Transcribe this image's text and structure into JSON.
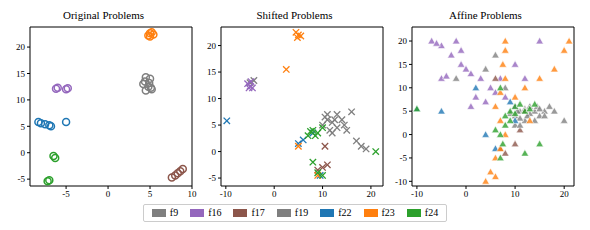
{
  "chart_data": [
    {
      "type": "scatter",
      "title": "Original Problems",
      "legend": "bottom",
      "xlim": [
        -9.3,
        10
      ],
      "xticks": [
        -5,
        0,
        5,
        10
      ],
      "ylim": [
        -6.3,
        23.8
      ],
      "yticks": [
        -5,
        0,
        5,
        10,
        15,
        20
      ],
      "series": [
        {
          "name": "f9",
          "color": "#7f7f7f",
          "marker": "circle",
          "x": [
            4.2,
            4.5,
            5.0,
            4.8,
            4.5,
            5.2
          ],
          "y": [
            13.0,
            14.3,
            14.0,
            12.5,
            11.8,
            12.0
          ]
        },
        {
          "name": "f16",
          "color": "#9467bd",
          "marker": "circle",
          "x": [
            -6.2,
            -6.0,
            -4.8,
            -5.0
          ],
          "y": [
            12.1,
            12.3,
            12.2,
            12.0
          ]
        },
        {
          "name": "f17",
          "color": "#8c564b",
          "marker": "circle",
          "x": [
            7.6,
            8.0,
            8.3,
            8.6,
            8.9
          ],
          "y": [
            -4.7,
            -4.3,
            -3.9,
            -3.5,
            -3.1
          ]
        },
        {
          "name": "f19",
          "color": "#7f7f7f",
          "marker": "circle",
          "x": [
            4.4,
            4.9,
            5.1
          ],
          "y": [
            13.5,
            13.2,
            12.3
          ]
        },
        {
          "name": "f22",
          "color": "#1f77b4",
          "marker": "circle",
          "x": [
            -8.3,
            -8.0,
            -7.5,
            -7.0,
            -6.8,
            -5.0
          ],
          "y": [
            5.8,
            5.6,
            5.4,
            5.2,
            5.0,
            5.8
          ]
        },
        {
          "name": "f23",
          "color": "#ff7f0e",
          "marker": "circle",
          "x": [
            4.8,
            5.0,
            5.2,
            5.4,
            5.0
          ],
          "y": [
            22.2,
            22.6,
            22.8,
            22.4,
            22.0
          ]
        },
        {
          "name": "f24",
          "color": "#2ca02c",
          "marker": "circle",
          "x": [
            -6.5,
            -6.3,
            -7.2,
            -7.0
          ],
          "y": [
            -0.6,
            -1.0,
            -5.4,
            -5.2
          ]
        }
      ]
    },
    {
      "type": "scatter",
      "title": "Shifted Problems",
      "xlim": [
        -11,
        22.5
      ],
      "xticks": [
        -10,
        0,
        10,
        20
      ],
      "ylim": [
        -6.5,
        23.5
      ],
      "yticks": [
        -5,
        0,
        5,
        10,
        15,
        20
      ],
      "series": [
        {
          "name": "f9",
          "color": "#7f7f7f",
          "marker": "x",
          "x": [
            10,
            11,
            12,
            13,
            14,
            15,
            16,
            12,
            18,
            19,
            11,
            13,
            -5,
            -4.2
          ],
          "y": [
            5,
            6,
            5.5,
            7,
            6,
            4,
            7.5,
            3.5,
            1,
            0.5,
            7,
            4.5,
            13,
            13.4
          ]
        },
        {
          "name": "f16",
          "color": "#9467bd",
          "marker": "x",
          "x": [
            -5.5,
            -5,
            -4.5,
            -4.8,
            -5.2
          ],
          "y": [
            12.8,
            12.3,
            12,
            13.2,
            12
          ]
        },
        {
          "name": "f17",
          "color": "#8c564b",
          "marker": "x",
          "x": [
            10.5,
            10,
            11,
            9
          ],
          "y": [
            1,
            -3,
            -2.5,
            -3.5
          ]
        },
        {
          "name": "f19",
          "color": "#7f7f7f",
          "marker": "x",
          "x": [
            10.5,
            12.5,
            14.5,
            11.5,
            17
          ],
          "y": [
            6.5,
            6,
            5,
            4,
            2
          ]
        },
        {
          "name": "f22",
          "color": "#1f77b4",
          "marker": "x",
          "x": [
            -9.8,
            5,
            6,
            9.5,
            8
          ],
          "y": [
            5.8,
            1.5,
            2.2,
            -4.5,
            3.5
          ]
        },
        {
          "name": "f23",
          "color": "#ff7f0e",
          "marker": "x",
          "x": [
            4.5,
            5,
            5.5,
            4.8,
            2.5,
            9,
            5
          ],
          "y": [
            22.5,
            22,
            21.8,
            21.5,
            15.5,
            -4.5,
            1
          ]
        },
        {
          "name": "f24",
          "color": "#2ca02c",
          "marker": "x",
          "x": [
            7,
            8,
            9,
            10,
            7.5,
            8.5,
            10,
            21,
            9,
            8
          ],
          "y": [
            3,
            4,
            3.5,
            4.5,
            3.8,
            3,
            -4.5,
            0,
            -4,
            -2
          ]
        }
      ]
    },
    {
      "type": "scatter",
      "title": "Affine Problems",
      "xlim": [
        -11,
        22
      ],
      "xticks": [
        -10,
        0,
        10,
        20
      ],
      "ylim": [
        -11,
        23
      ],
      "yticks": [
        -10,
        -5,
        0,
        5,
        10,
        15,
        20
      ],
      "series": [
        {
          "name": "f9",
          "color": "#7f7f7f",
          "marker": "triangle",
          "x": [
            10,
            11,
            12,
            13,
            14,
            15,
            12,
            10,
            11,
            13,
            16,
            17,
            14,
            9,
            18,
            6,
            4,
            -2,
            20,
            8
          ],
          "y": [
            4,
            5,
            5.5,
            6,
            5,
            4,
            3,
            2,
            3.5,
            4.5,
            5,
            6,
            3,
            4.5,
            5,
            17,
            14,
            12,
            3,
            10
          ]
        },
        {
          "name": "f16",
          "color": "#9467bd",
          "marker": "triangle",
          "x": [
            -7,
            -5,
            -3,
            -1,
            0,
            1,
            3,
            5,
            6,
            8,
            10,
            -5,
            -4,
            -6,
            -2,
            -1,
            2,
            4,
            10,
            12,
            15,
            1,
            7
          ],
          "y": [
            20,
            19,
            17,
            15,
            14,
            13,
            12,
            10,
            9,
            8,
            6,
            12,
            12.5,
            19.5,
            20,
            18,
            8,
            7,
            15,
            12,
            20,
            6,
            12
          ]
        },
        {
          "name": "f17",
          "color": "#8c564b",
          "marker": "triangle",
          "x": [
            7,
            8,
            11,
            10,
            12,
            6
          ],
          "y": [
            -3,
            -4,
            1,
            -2,
            5,
            12
          ]
        },
        {
          "name": "f19",
          "color": "#7f7f7f",
          "marker": "triangle",
          "x": [
            10.5,
            12.5,
            14.5,
            11,
            15,
            16
          ],
          "y": [
            5,
            4,
            6,
            2,
            5.5,
            4
          ]
        },
        {
          "name": "f22",
          "color": "#1f77b4",
          "marker": "triangle",
          "x": [
            -10,
            -5,
            4,
            6,
            10,
            9,
            2
          ],
          "y": [
            5.5,
            5,
            0,
            -3,
            3,
            7,
            10
          ]
        },
        {
          "name": "f23",
          "color": "#ff7f0e",
          "marker": "triangle",
          "x": [
            8,
            8,
            7.5,
            8,
            7,
            6,
            7,
            8,
            7,
            6,
            5,
            4,
            6,
            10,
            12,
            15,
            18,
            20,
            21,
            13
          ],
          "y": [
            20,
            18,
            15,
            12,
            9,
            6,
            3,
            0,
            -3,
            -5,
            -8,
            -10,
            -9,
            8,
            10,
            12,
            14,
            18,
            20,
            3
          ]
        },
        {
          "name": "f24",
          "color": "#2ca02c",
          "marker": "triangle",
          "x": [
            8,
            9,
            10,
            11,
            12,
            9,
            10,
            13,
            14,
            8,
            7.5,
            7,
            7,
            6,
            15,
            12,
            -10,
            7
          ],
          "y": [
            4,
            5,
            6,
            6.5,
            5,
            3,
            4.5,
            5.5,
            6.5,
            2,
            -2,
            -5,
            0,
            1,
            -2,
            -4,
            5.5,
            10
          ]
        }
      ]
    }
  ]
}
